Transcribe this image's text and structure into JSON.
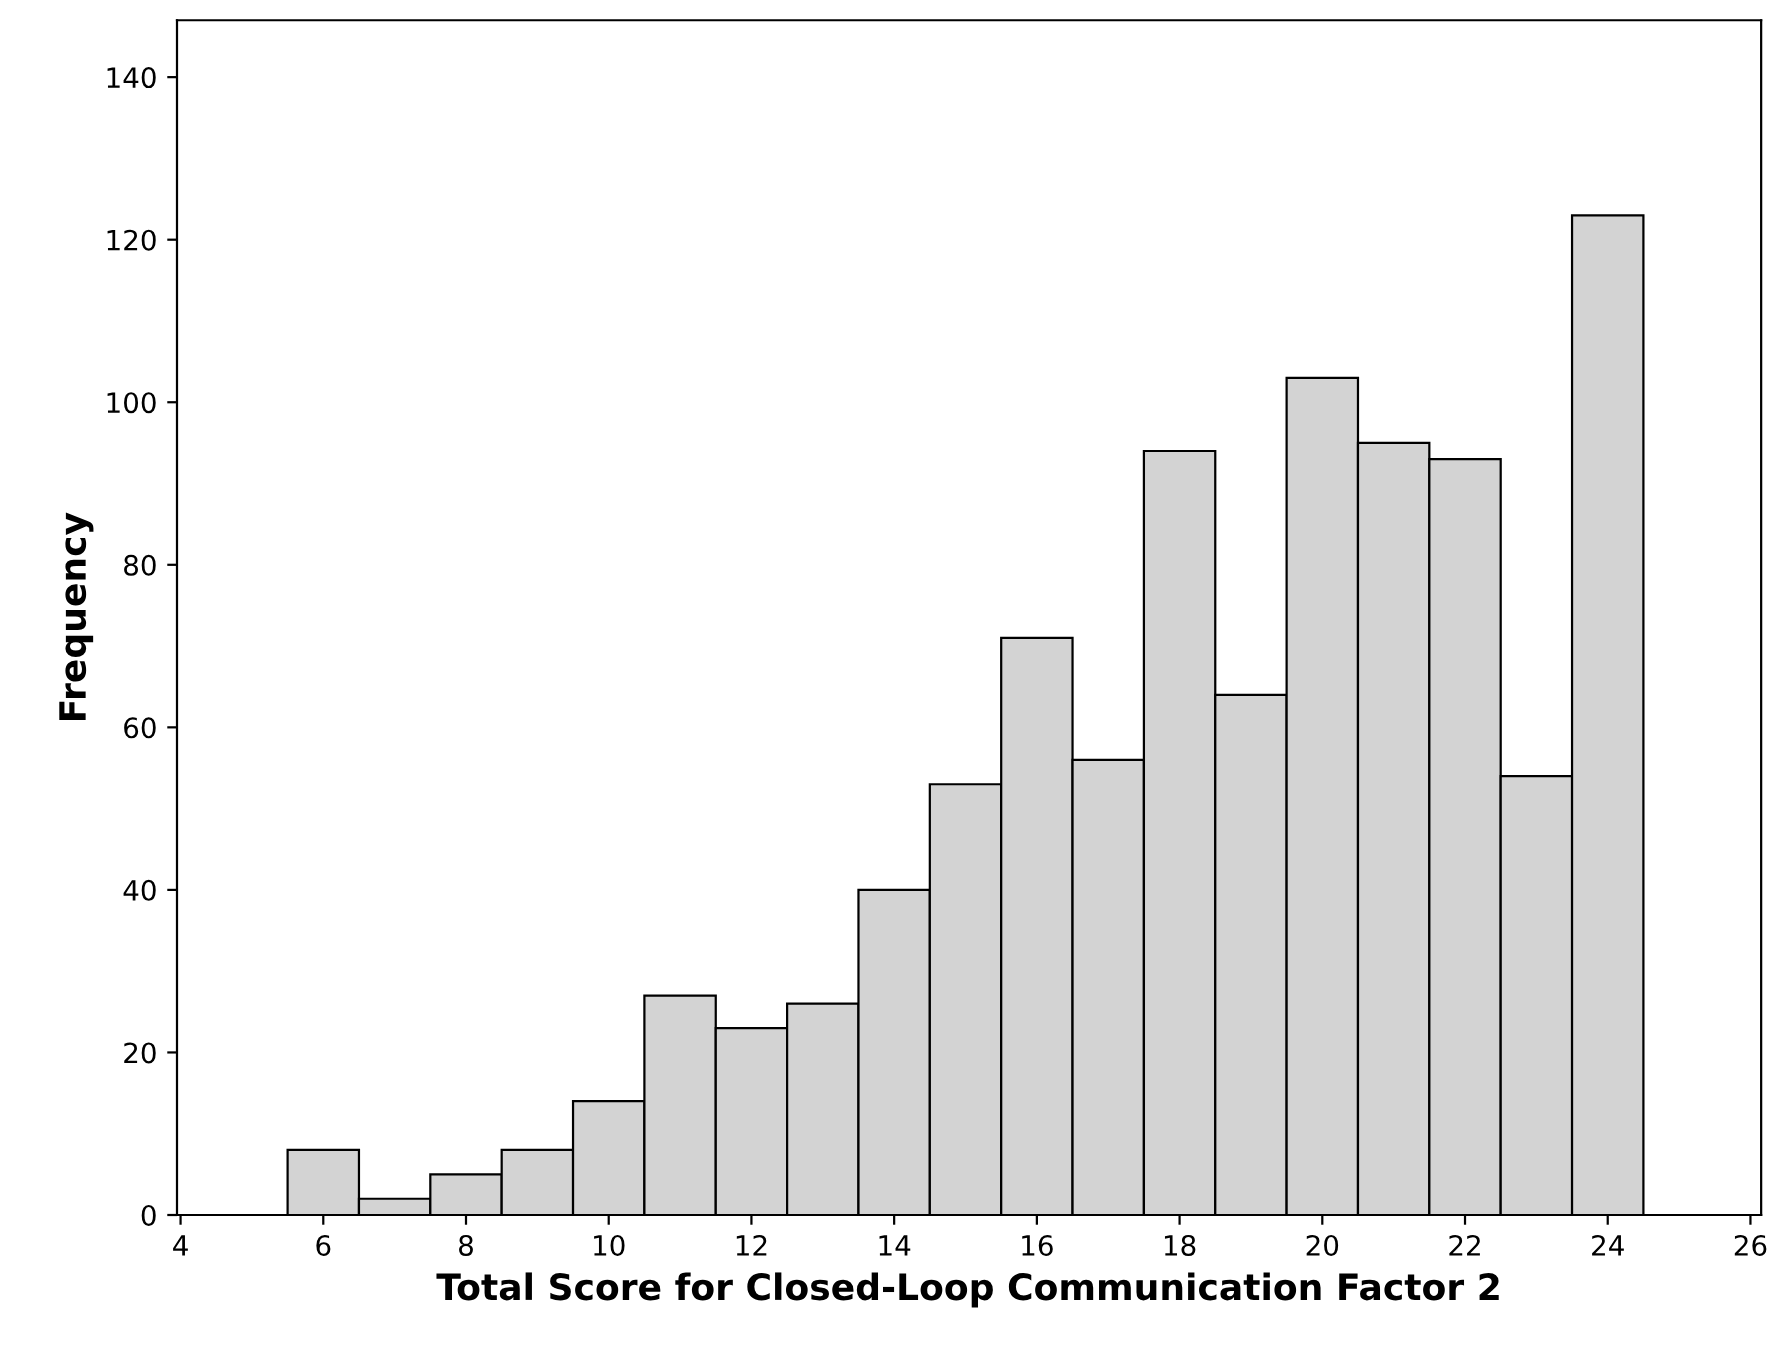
{
  "chart_data": {
    "type": "histogram",
    "xlabel": "Total Score for Closed-Loop Communication Factor 2",
    "ylabel": "Frequency",
    "bins": [
      5.5,
      6.5,
      7.5,
      8.5,
      9.5,
      10.5,
      11.5,
      12.5,
      13.5,
      14.5,
      15.5,
      16.5,
      17.5,
      18.5,
      19.5,
      20.5,
      21.5,
      22.5,
      23.5,
      24.5
    ],
    "values": [
      8,
      2,
      5,
      8,
      14,
      27,
      23,
      26,
      40,
      53,
      71,
      56,
      94,
      64,
      103,
      95,
      93,
      54,
      123
    ],
    "color": "#d3d3d3",
    "xlim": [
      3.95,
      26.15
    ],
    "xticks": [
      4,
      6,
      8,
      10,
      12,
      14,
      16,
      18,
      20,
      22,
      24,
      26
    ],
    "ylim": [
      0,
      147
    ],
    "yticks": [
      0,
      20,
      40,
      60,
      80,
      100,
      120,
      140
    ],
    "grid": false
  }
}
